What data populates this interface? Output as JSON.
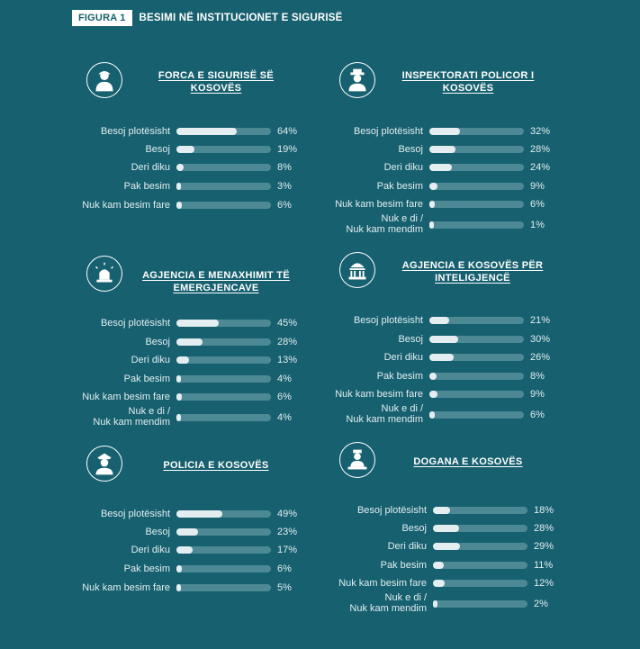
{
  "figure": {
    "badge": "FIGURA 1",
    "title": "BESIMI NË INSTITUCIONET E SIGURISË"
  },
  "colors": {
    "background": "#17606f",
    "bar_fill": "#e4eef0",
    "bar_track": "#4d8995",
    "text": "#ffffff"
  },
  "chart_data": [
    {
      "type": "bar",
      "title": "FORCA E SIGURISË SË KOSOVËS",
      "icon": "soldier-icon",
      "categories": [
        "Besoj plotësisht",
        "Besoj",
        "Deri diku",
        "Pak besim",
        "Nuk kam besim fare"
      ],
      "values": [
        64,
        19,
        8,
        3,
        6
      ],
      "value_labels": [
        "64%",
        "19%",
        "8%",
        "3%",
        "6%"
      ],
      "xlim": [
        0,
        100
      ]
    },
    {
      "type": "bar",
      "title": "INSPEKTORATI POLICOR I KOSOVËS",
      "icon": "inspector-icon",
      "categories": [
        "Besoj plotësisht",
        "Besoj",
        "Deri diku",
        "Pak besim",
        "Nuk kam besim fare",
        "Nuk e di / Nuk kam mendim"
      ],
      "values": [
        32,
        28,
        24,
        9,
        6,
        1
      ],
      "value_labels": [
        "32%",
        "28%",
        "24%",
        "9%",
        "6%",
        "1%"
      ],
      "xlim": [
        0,
        100
      ]
    },
    {
      "type": "bar",
      "title": "AGJENCIA E MENAXHIMIT TË EMERGJENCAVE",
      "icon": "siren-icon",
      "categories": [
        "Besoj plotësisht",
        "Besoj",
        "Deri diku",
        "Pak besim",
        "Nuk kam besim fare",
        "Nuk e di / Nuk kam mendim"
      ],
      "values": [
        45,
        28,
        13,
        4,
        6,
        4
      ],
      "value_labels": [
        "45%",
        "28%",
        "13%",
        "4%",
        "6%",
        "4%"
      ],
      "xlim": [
        0,
        100
      ]
    },
    {
      "type": "bar",
      "title": "AGJENCIA E KOSOVËS PËR INTELIGJENCË",
      "icon": "government-building-icon",
      "categories": [
        "Besoj plotësisht",
        "Besoj",
        "Deri diku",
        "Pak besim",
        "Nuk kam besim fare",
        "Nuk e di / Nuk kam mendim"
      ],
      "values": [
        21,
        30,
        26,
        8,
        9,
        6
      ],
      "value_labels": [
        "21%",
        "30%",
        "26%",
        "8%",
        "9%",
        "6%"
      ],
      "xlim": [
        0,
        100
      ]
    },
    {
      "type": "bar",
      "title": "POLICIA E KOSOVËS",
      "icon": "police-officer-icon",
      "categories": [
        "Besoj plotësisht",
        "Besoj",
        "Deri diku",
        "Pak besim",
        "Nuk kam besim fare"
      ],
      "values": [
        49,
        23,
        17,
        6,
        5
      ],
      "value_labels": [
        "49%",
        "23%",
        "17%",
        "6%",
        "5%"
      ],
      "xlim": [
        0,
        100
      ]
    },
    {
      "type": "bar",
      "title": "DOGANA E KOSOVËS",
      "icon": "customs-officer-icon",
      "categories": [
        "Besoj plotësisht",
        "Besoj",
        "Deri diku",
        "Pak besim",
        "Nuk kam besim fare",
        "Nuk e di / Nuk kam mendim"
      ],
      "values": [
        18,
        28,
        29,
        11,
        12,
        2
      ],
      "value_labels": [
        "18%",
        "28%",
        "29%",
        "11%",
        "12%",
        "2%"
      ],
      "xlim": [
        0,
        100
      ]
    }
  ]
}
